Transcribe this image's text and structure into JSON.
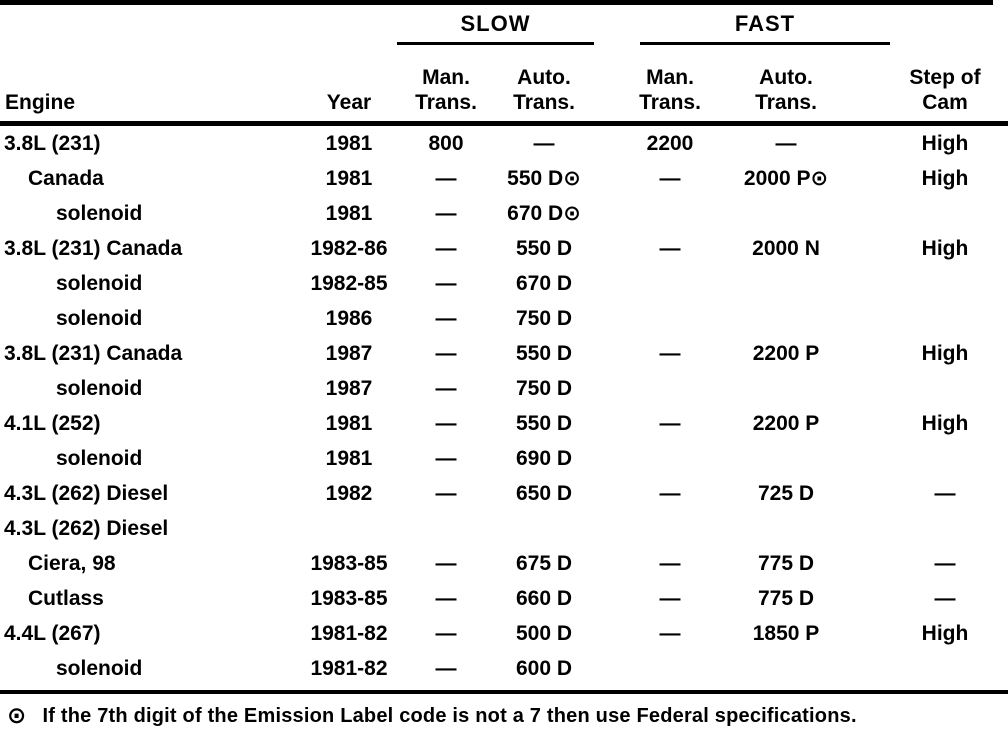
{
  "page": {
    "background_color": "#ffffff",
    "text_color": "#000000"
  },
  "table": {
    "group_headers": [
      {
        "id": "slow",
        "label": "SLOW"
      },
      {
        "id": "fast",
        "label": "FAST"
      }
    ],
    "column_headers": {
      "engine": "Engine",
      "year": "Year",
      "slow_man": {
        "line1": "Man.",
        "line2": "Trans."
      },
      "slow_auto": {
        "line1": "Auto.",
        "line2": "Trans."
      },
      "fast_man": {
        "line1": "Man.",
        "line2": "Trans."
      },
      "fast_auto": {
        "line1": "Auto.",
        "line2": "Trans."
      },
      "step_of_cam": {
        "line1": "Step of",
        "line2": "Cam"
      }
    },
    "rows": [
      {
        "engine": "3.8L (231)",
        "indent": 0,
        "year": "1981",
        "slow_man": "800",
        "slow_auto": "—",
        "fast_man": "2200",
        "fast_auto": "—",
        "cam": "High"
      },
      {
        "engine": "Canada",
        "indent": 1,
        "year": "1981",
        "slow_man": "—",
        "slow_auto": "550 D⊙",
        "fast_man": "—",
        "fast_auto": "2000 P⊙",
        "cam": "High"
      },
      {
        "engine": "solenoid",
        "indent": 2,
        "year": "1981",
        "slow_man": "—",
        "slow_auto": "670 D⊙",
        "fast_man": "",
        "fast_auto": "",
        "cam": ""
      },
      {
        "engine": "3.8L (231) Canada",
        "indent": 0,
        "year": "1982-86",
        "slow_man": "—",
        "slow_auto": "550 D",
        "fast_man": "—",
        "fast_auto": "2000 N",
        "cam": "High"
      },
      {
        "engine": "solenoid",
        "indent": 2,
        "year": "1982-85",
        "slow_man": "—",
        "slow_auto": "670 D",
        "fast_man": "",
        "fast_auto": "",
        "cam": ""
      },
      {
        "engine": "solenoid",
        "indent": 2,
        "year": "1986",
        "slow_man": "—",
        "slow_auto": "750 D",
        "fast_man": "",
        "fast_auto": "",
        "cam": ""
      },
      {
        "engine": "3.8L (231) Canada",
        "indent": 0,
        "year": "1987",
        "slow_man": "—",
        "slow_auto": "550 D",
        "fast_man": "—",
        "fast_auto": "2200 P",
        "cam": "High"
      },
      {
        "engine": "solenoid",
        "indent": 2,
        "year": "1987",
        "slow_man": "—",
        "slow_auto": "750 D",
        "fast_man": "",
        "fast_auto": "",
        "cam": ""
      },
      {
        "engine": "4.1L (252)",
        "indent": 0,
        "year": "1981",
        "slow_man": "—",
        "slow_auto": "550 D",
        "fast_man": "—",
        "fast_auto": "2200 P",
        "cam": "High"
      },
      {
        "engine": "solenoid",
        "indent": 2,
        "year": "1981",
        "slow_man": "—",
        "slow_auto": "690 D",
        "fast_man": "",
        "fast_auto": "",
        "cam": ""
      },
      {
        "engine": "4.3L (262) Diesel",
        "indent": 0,
        "year": "1982",
        "slow_man": "—",
        "slow_auto": "650 D",
        "fast_man": "—",
        "fast_auto": "725 D",
        "cam": "—"
      },
      {
        "engine": "4.3L (262) Diesel",
        "indent": 0,
        "year": "",
        "slow_man": "",
        "slow_auto": "",
        "fast_man": "",
        "fast_auto": "",
        "cam": ""
      },
      {
        "engine": "Ciera, 98",
        "indent": 1,
        "year": "1983-85",
        "slow_man": "—",
        "slow_auto": "675 D",
        "fast_man": "—",
        "fast_auto": "775 D",
        "cam": "—"
      },
      {
        "engine": "Cutlass",
        "indent": 1,
        "year": "1983-85",
        "slow_man": "—",
        "slow_auto": "660 D",
        "fast_man": "—",
        "fast_auto": "775 D",
        "cam": "—"
      },
      {
        "engine": "4.4L (267)",
        "indent": 0,
        "year": "1981-82",
        "slow_man": "—",
        "slow_auto": "500 D",
        "fast_man": "—",
        "fast_auto": "1850 P",
        "cam": "High"
      },
      {
        "engine": "solenoid",
        "indent": 2,
        "year": "1981-82",
        "slow_man": "—",
        "slow_auto": "600 D",
        "fast_man": "",
        "fast_auto": "",
        "cam": ""
      }
    ]
  },
  "footnote": {
    "marker": "⊙",
    "text": "If the 7th digit of the Emission Label code is not a 7 then use Federal specifications."
  }
}
